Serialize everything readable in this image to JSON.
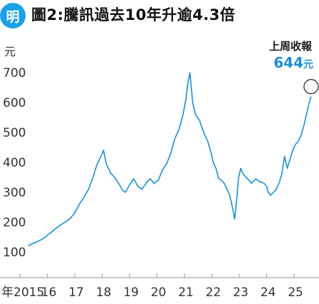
{
  "logo": {
    "text": "明",
    "color": "#1aa0e8"
  },
  "title": "圖2:騰訊過去10年升逾4.3倍",
  "callout": {
    "label": "上周收報",
    "value": "644",
    "unit": "元",
    "color": "#1a8fd6"
  },
  "chart_data": {
    "type": "line",
    "title": "圖2:騰訊過去10年升逾4.3倍",
    "ylabel": "元",
    "xlabel": "年",
    "ylim": [
      100,
      700
    ],
    "xlim": [
      2015.0,
      2025.7
    ],
    "y_ticks": [
      100,
      200,
      300,
      400,
      500,
      600,
      700
    ],
    "x_tick_labels": [
      {
        "value": 2015.0,
        "label": "年2015"
      },
      {
        "value": 2016.0,
        "label": "16"
      },
      {
        "value": 2017.0,
        "label": "17"
      },
      {
        "value": 2018.0,
        "label": "18"
      },
      {
        "value": 2019.0,
        "label": "19"
      },
      {
        "value": 2020.0,
        "label": "20"
      },
      {
        "value": 2021.0,
        "label": "21"
      },
      {
        "value": 2022.0,
        "label": "22"
      },
      {
        "value": 2023.0,
        "label": "23"
      },
      {
        "value": 2024.0,
        "label": "24"
      },
      {
        "value": 2025.0,
        "label": "25"
      }
    ],
    "grid": false,
    "line_color": "#1a8fd6",
    "series": [
      {
        "x": [
          2015.3,
          2015.45,
          2015.6,
          2015.75,
          2015.9,
          2016.05,
          2016.2,
          2016.35,
          2016.5,
          2016.65,
          2016.8,
          2016.95,
          2017.05,
          2017.2,
          2017.35,
          2017.5,
          2017.65,
          2017.8,
          2017.9,
          2018.0,
          2018.05,
          2018.15,
          2018.3,
          2018.45,
          2018.6,
          2018.75,
          2018.85,
          2019.0,
          2019.15,
          2019.3,
          2019.45,
          2019.6,
          2019.75,
          2019.9,
          2020.05,
          2020.2,
          2020.35,
          2020.5,
          2020.65,
          2020.8,
          2020.95,
          2021.05,
          2021.12,
          2021.2,
          2021.3,
          2021.4,
          2021.55,
          2021.7,
          2021.85,
          2021.95,
          2022.05,
          2022.15,
          2022.25,
          2022.35,
          2022.45,
          2022.55,
          2022.65,
          2022.75,
          2022.83,
          2022.9,
          2022.97,
          2023.05,
          2023.15,
          2023.3,
          2023.45,
          2023.6,
          2023.75,
          2023.9,
          2024.0,
          2024.05,
          2024.15,
          2024.25,
          2024.35,
          2024.45,
          2024.55,
          2024.65,
          2024.75,
          2024.85,
          2024.95,
          2025.05,
          2025.15,
          2025.25,
          2025.35,
          2025.45,
          2025.55,
          2025.62
        ],
        "y": [
          120,
          128,
          133,
          140,
          148,
          160,
          170,
          182,
          192,
          200,
          210,
          225,
          240,
          265,
          285,
          310,
          345,
          390,
          410,
          430,
          440,
          395,
          365,
          350,
          330,
          305,
          300,
          325,
          345,
          320,
          310,
          330,
          345,
          330,
          340,
          375,
          395,
          430,
          480,
          510,
          560,
          610,
          660,
          700,
          600,
          560,
          540,
          500,
          470,
          440,
          400,
          380,
          345,
          340,
          330,
          310,
          290,
          250,
          210,
          270,
          345,
          380,
          360,
          345,
          330,
          345,
          335,
          330,
          320,
          300,
          290,
          300,
          310,
          330,
          360,
          420,
          380,
          410,
          440,
          460,
          470,
          490,
          520,
          560,
          600,
          620
        ]
      }
    ],
    "highlight": {
      "x": 2025.62,
      "y": 620
    }
  }
}
